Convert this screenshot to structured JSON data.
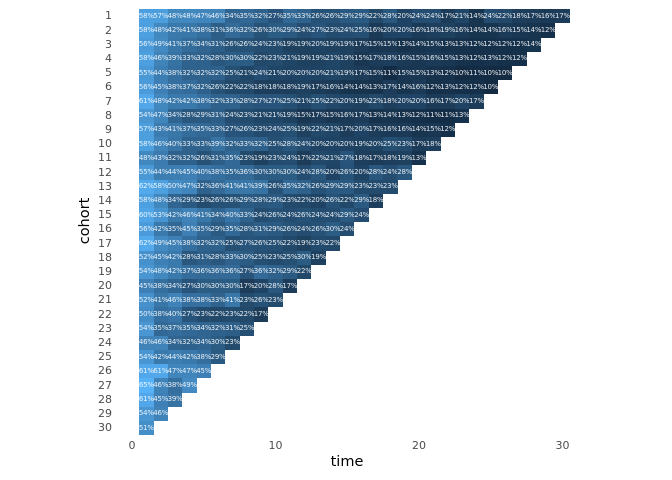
{
  "chart_data": {
    "type": "heatmap",
    "title": "",
    "xlabel": "time",
    "ylabel": "cohort",
    "x_ticks": [
      0,
      10,
      20,
      30
    ],
    "x_range": [
      0,
      30
    ],
    "y_tick_labels": [
      "1",
      "2",
      "3",
      "4",
      "5",
      "6",
      "7",
      "8",
      "9",
      "10",
      "11",
      "12",
      "13",
      "14",
      "15",
      "16",
      "17",
      "18",
      "19",
      "20",
      "21",
      "22",
      "23",
      "24",
      "25",
      "26",
      "27",
      "28",
      "29",
      "30"
    ],
    "value_suffix": "%",
    "grid": "off",
    "legend": "none",
    "color_scale": {
      "low_color": "#132B43",
      "high_color": "#56B1F7",
      "domain": [
        10,
        65
      ]
    },
    "label_color": "#ffffff",
    "axis_text_color": "#4d4d4d",
    "axis_title_color": "#000000",
    "background_color": "#ffffff",
    "rows_meaning": "rows[i] = retention % of cohort i+1 at time 1..(30-i)",
    "rows": [
      [
        58,
        57,
        48,
        48,
        47,
        46,
        34,
        35,
        32,
        27,
        35,
        33,
        26,
        26,
        29,
        29,
        22,
        28,
        20,
        24,
        24,
        17,
        21,
        14,
        24,
        22,
        18,
        17,
        16,
        17
      ],
      [
        58,
        48,
        42,
        41,
        38,
        31,
        36,
        32,
        26,
        30,
        29,
        24,
        27,
        23,
        24,
        25,
        16,
        20,
        20,
        16,
        18,
        19,
        16,
        14,
        14,
        16,
        15,
        14,
        12
      ],
      [
        56,
        49,
        41,
        37,
        34,
        31,
        26,
        26,
        24,
        23,
        19,
        19,
        20,
        19,
        19,
        17,
        15,
        15,
        13,
        14,
        15,
        13,
        13,
        12,
        12,
        12,
        12,
        14
      ],
      [
        58,
        46,
        39,
        33,
        32,
        28,
        30,
        30,
        22,
        23,
        21,
        19,
        19,
        21,
        19,
        15,
        17,
        18,
        16,
        15,
        16,
        15,
        13,
        12,
        13,
        12,
        12
      ],
      [
        55,
        44,
        38,
        32,
        32,
        32,
        25,
        21,
        24,
        21,
        20,
        20,
        20,
        21,
        19,
        17,
        15,
        11,
        15,
        15,
        13,
        12,
        10,
        11,
        10,
        10
      ],
      [
        56,
        45,
        38,
        37,
        32,
        26,
        22,
        22,
        18,
        18,
        18,
        19,
        17,
        16,
        14,
        14,
        13,
        17,
        14,
        16,
        12,
        13,
        12,
        12,
        10
      ],
      [
        61,
        48,
        42,
        42,
        38,
        32,
        33,
        28,
        27,
        27,
        25,
        21,
        25,
        22,
        20,
        19,
        22,
        18,
        20,
        20,
        16,
        17,
        20,
        17
      ],
      [
        54,
        47,
        34,
        28,
        29,
        31,
        24,
        23,
        21,
        21,
        19,
        15,
        17,
        15,
        16,
        17,
        13,
        14,
        13,
        12,
        11,
        11,
        13
      ],
      [
        57,
        43,
        41,
        37,
        35,
        33,
        27,
        26,
        23,
        24,
        25,
        19,
        22,
        21,
        17,
        20,
        17,
        16,
        16,
        14,
        15,
        12
      ],
      [
        58,
        46,
        40,
        33,
        33,
        39,
        32,
        33,
        32,
        25,
        28,
        24,
        20,
        20,
        20,
        19,
        20,
        25,
        23,
        17,
        18
      ],
      [
        48,
        43,
        32,
        32,
        26,
        31,
        35,
        23,
        19,
        23,
        24,
        17,
        22,
        21,
        27,
        18,
        17,
        18,
        19,
        13
      ],
      [
        55,
        44,
        44,
        45,
        40,
        38,
        35,
        36,
        30,
        30,
        30,
        24,
        28,
        20,
        26,
        20,
        28,
        24,
        28
      ],
      [
        62,
        58,
        50,
        47,
        32,
        36,
        41,
        41,
        39,
        26,
        35,
        32,
        26,
        29,
        29,
        23,
        23,
        23
      ],
      [
        58,
        48,
        34,
        29,
        23,
        26,
        26,
        29,
        28,
        29,
        23,
        22,
        20,
        26,
        22,
        29,
        18
      ],
      [
        60,
        53,
        42,
        46,
        41,
        34,
        40,
        33,
        24,
        26,
        24,
        26,
        24,
        24,
        29,
        24
      ],
      [
        56,
        42,
        35,
        45,
        35,
        29,
        35,
        28,
        31,
        29,
        26,
        24,
        26,
        30,
        24
      ],
      [
        62,
        49,
        45,
        38,
        32,
        32,
        25,
        27,
        26,
        25,
        22,
        19,
        23,
        22
      ],
      [
        52,
        45,
        42,
        28,
        31,
        28,
        33,
        30,
        25,
        23,
        25,
        30,
        19
      ],
      [
        54,
        48,
        42,
        37,
        36,
        36,
        36,
        27,
        36,
        32,
        29,
        22
      ],
      [
        45,
        38,
        34,
        27,
        30,
        30,
        30,
        17,
        20,
        28,
        17
      ],
      [
        52,
        41,
        46,
        38,
        38,
        33,
        41,
        23,
        26,
        23
      ],
      [
        50,
        38,
        40,
        27,
        23,
        22,
        23,
        22,
        17
      ],
      [
        54,
        35,
        37,
        35,
        34,
        32,
        31,
        25
      ],
      [
        46,
        46,
        34,
        32,
        34,
        30,
        23
      ],
      [
        54,
        42,
        44,
        42,
        38,
        29
      ],
      [
        61,
        61,
        47,
        47,
        45
      ],
      [
        65,
        46,
        38,
        49
      ],
      [
        61,
        45,
        39
      ],
      [
        54,
        46
      ],
      [
        51
      ]
    ]
  }
}
